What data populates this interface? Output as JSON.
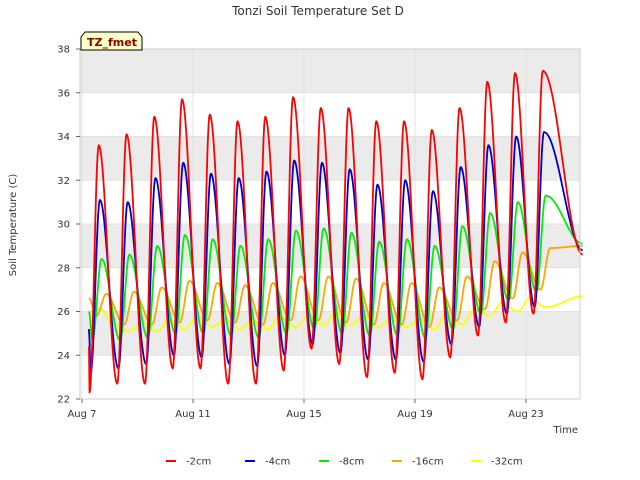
{
  "chart_data": {
    "type": "line",
    "title": "Tonzi Soil Temperature Set D",
    "xlabel": "Time",
    "ylabel": "Soil Temperature (C)",
    "site_tag": "TZ_fmet",
    "xlim": [
      "Aug 7",
      "Aug 25 2:00"
    ],
    "ylim": [
      22,
      38
    ],
    "x_ticks": [
      "Aug 7",
      "Aug 11",
      "Aug 15",
      "Aug 19",
      "Aug 23"
    ],
    "y_ticks": [
      "22",
      "24",
      "26",
      "28",
      "30",
      "32",
      "34",
      "36",
      "38"
    ],
    "grid": true,
    "background_bands": "alternating light gray between even y ticks",
    "legend_position": "bottom",
    "x_start": "Aug 7 06:00",
    "daily_peaks": {
      "-2cm": [
        33.6,
        34.1,
        34.9,
        35.7,
        35.0,
        34.7,
        34.9,
        35.8,
        35.3,
        35.3,
        34.7,
        34.7,
        34.3,
        35.3,
        36.5,
        36.9,
        37.0
      ],
      "-4cm": [
        31.1,
        31.0,
        32.1,
        32.8,
        32.3,
        32.1,
        32.4,
        32.9,
        32.8,
        32.5,
        31.8,
        32.0,
        31.5,
        32.6,
        33.6,
        34.0,
        34.2
      ],
      "-8cm": [
        28.4,
        28.6,
        29.0,
        29.5,
        29.3,
        29.0,
        29.3,
        29.7,
        29.8,
        29.6,
        29.2,
        29.3,
        29.0,
        29.9,
        30.5,
        31.0,
        31.3
      ],
      "-16cm": [
        26.8,
        26.9,
        27.1,
        27.4,
        27.3,
        27.2,
        27.3,
        27.6,
        27.6,
        27.5,
        27.3,
        27.3,
        27.1,
        27.6,
        28.3,
        28.7,
        28.9
      ],
      "-32cm": [
        25.5,
        25.4,
        25.5,
        25.6,
        25.7,
        25.6,
        25.6,
        25.8,
        25.8,
        25.9,
        25.8,
        25.7,
        25.6,
        25.9,
        26.1,
        26.4,
        26.6
      ]
    },
    "daily_troughs": {
      "-2cm": [
        22.3,
        22.7,
        22.7,
        23.4,
        23.4,
        22.7,
        22.7,
        23.3,
        24.3,
        23.6,
        23.0,
        23.2,
        22.9,
        23.9,
        24.9,
        25.5,
        25.9
      ],
      "-4cm": [
        23.2,
        23.4,
        23.6,
        24.0,
        23.9,
        23.6,
        23.5,
        24.0,
        24.5,
        24.1,
        23.8,
        23.8,
        23.7,
        24.5,
        25.3,
        25.9,
        26.2
      ],
      "-8cm": [
        24.7,
        24.7,
        24.8,
        25.0,
        25.0,
        24.9,
        24.8,
        25.0,
        25.2,
        25.0,
        24.9,
        24.9,
        24.8,
        25.2,
        25.9,
        26.5,
        26.9
      ],
      "-16cm": [
        25.8,
        25.4,
        25.4,
        25.5,
        25.6,
        25.5,
        25.4,
        25.6,
        25.6,
        25.5,
        25.4,
        25.4,
        25.3,
        25.6,
        26.1,
        26.6,
        27.0
      ],
      "-32cm": [
        26.1,
        25.1,
        25.1,
        25.2,
        25.3,
        25.2,
        25.2,
        25.3,
        25.4,
        25.4,
        25.3,
        25.3,
        25.2,
        25.4,
        25.8,
        26.0,
        26.2
      ]
    },
    "series": [
      {
        "name": "-2cm",
        "color": "#ff0000",
        "peak_hour": 14.5,
        "trough_hour": 6.5,
        "start": 24.4,
        "end": 28.6
      },
      {
        "name": "-4cm",
        "color": "#0000cc",
        "peak_hour": 15.5,
        "trough_hour": 7.5,
        "start": 25.2,
        "end": 28.8
      },
      {
        "name": "-8cm",
        "color": "#00ee00",
        "peak_hour": 17.0,
        "trough_hour": 9.0,
        "start": 26.0,
        "end": 29.1
      },
      {
        "name": "-16cm",
        "color": "#ffa500",
        "peak_hour": 21.0,
        "trough_hour": 12.5,
        "start": 26.6,
        "end": 29.0
      },
      {
        "name": "-32cm",
        "color": "#ffff00",
        "peak_hour": 3.0,
        "trough_hour": 17.0,
        "start": 26.0,
        "end": 26.7
      }
    ]
  }
}
